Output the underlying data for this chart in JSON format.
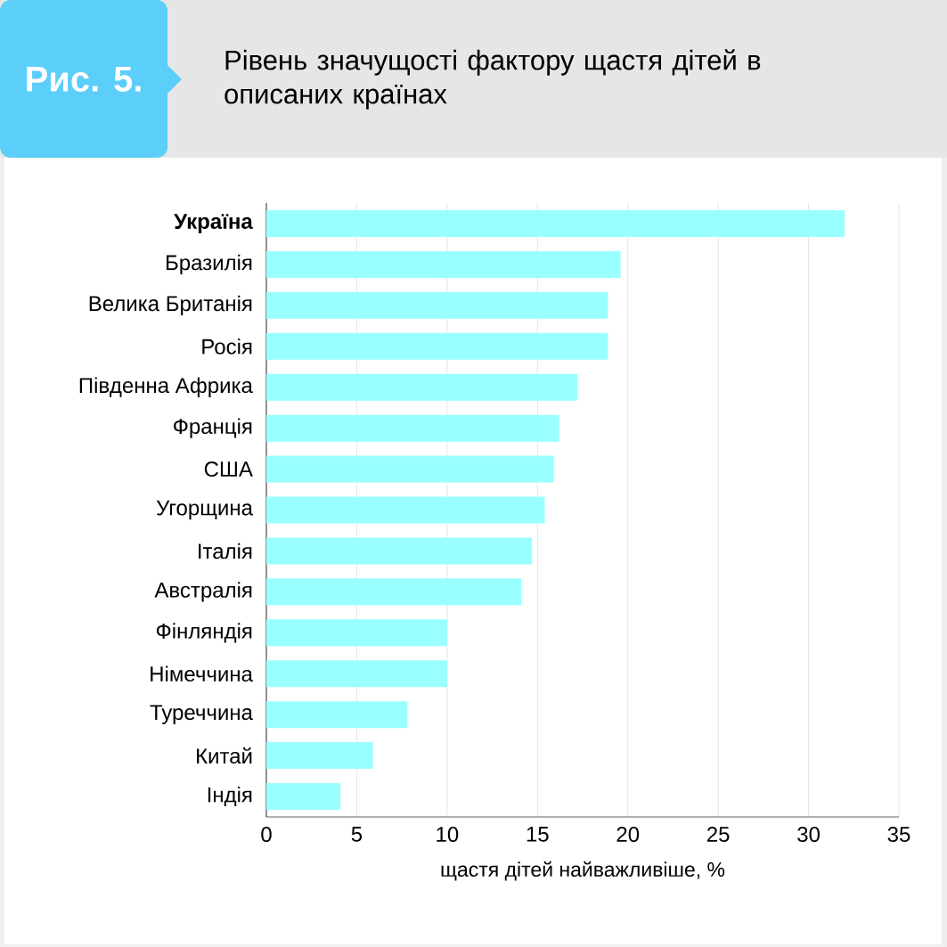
{
  "chart_data": {
    "type": "bar",
    "orientation": "horizontal",
    "title": "Рівень значущості фактору щастя дітей в описаних країнах",
    "annotations": [
      "Рис. 5."
    ],
    "xlabel": "щастя дітей найважливіше, %",
    "categories": [
      "**Україна**",
      "Бразилія",
      "Велика Британія",
      "Росія",
      "Південна Африка",
      "Франція",
      "США",
      "Угорщина",
      "Італія",
      "Австралія",
      "Фінляндія",
      "Німеччина",
      "Туреччина",
      "Китай",
      "Індія"
    ],
    "values": [
      32.0,
      19.6,
      18.9,
      18.9,
      17.2,
      16.2,
      15.9,
      15.4,
      14.7,
      14.1,
      10.0,
      10.0,
      7.8,
      5.9,
      4.1
    ],
    "color": "#99ffff",
    "xlim": [
      0,
      35
    ],
    "xticks": [
      0,
      5,
      10,
      15,
      20,
      25,
      30,
      35
    ],
    "grid": "x"
  }
}
